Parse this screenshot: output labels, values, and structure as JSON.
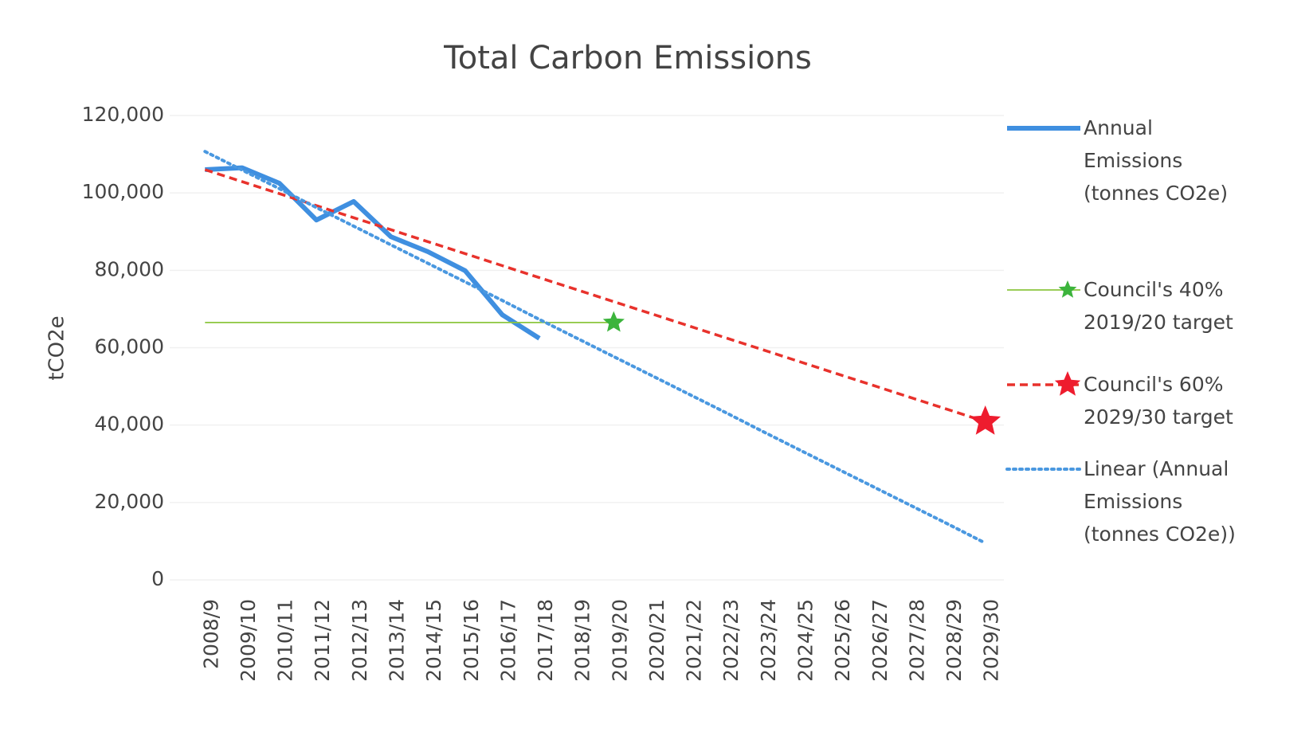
{
  "chart_data": {
    "type": "line",
    "title": "Total Carbon Emissions",
    "y_label": "tCO2e",
    "categories": [
      "2008/9",
      "2009/10",
      "2010/11",
      "2011/12",
      "2012/13",
      "2013/14",
      "2014/15",
      "2015/16",
      "2016/17",
      "2017/18",
      "2018/19",
      "2019/20",
      "2020/21",
      "2021/22",
      "2022/23",
      "2023/24",
      "2024/25",
      "2025/26",
      "2026/27",
      "2027/28",
      "2028/29",
      "2029/30"
    ],
    "ylim": [
      0,
      120000
    ],
    "yticks": [
      0,
      {
        "value": 20000,
        "label": "20,000"
      },
      {
        "value": 40000,
        "label": "40,000"
      },
      {
        "value": 60000,
        "label": "60,000"
      },
      {
        "value": 80000,
        "label": "80,000"
      },
      {
        "value": 100000,
        "label": "100,000"
      },
      {
        "value": 120000,
        "label": "120,000"
      }
    ],
    "grid": true,
    "legend": "right",
    "series": [
      {
        "name": "Annual Emissions (tonnes CO2e)",
        "color": "#3f8fe0",
        "style": "solid",
        "width": 6,
        "values": [
          106000,
          106500,
          102500,
          93000,
          97800,
          88700,
          84800,
          79900,
          68500,
          62400,
          null,
          null,
          null,
          null,
          null,
          null,
          null,
          null,
          null,
          null,
          null,
          null
        ]
      },
      {
        "name": "Council's 40% 2019/20 target",
        "color": "#8cc63f",
        "style": "solid",
        "width": 1.8,
        "marker": "star",
        "marker_color": "#3cb43c",
        "values": [
          66500,
          66500,
          66500,
          66500,
          66500,
          66500,
          66500,
          66500,
          66500,
          66500,
          66500,
          66500,
          null,
          null,
          null,
          null,
          null,
          null,
          null,
          null,
          null,
          null
        ]
      },
      {
        "name": "Council's 60% 2029/30 target",
        "color": "#e8322c",
        "style": "dashed",
        "width": 3.5,
        "marker": "star",
        "marker_color": "#ee1c2e",
        "values": [
          106000,
          102900,
          99800,
          96700,
          93600,
          90500,
          87400,
          84300,
          81200,
          78100,
          75000,
          71900,
          68800,
          65700,
          62600,
          59500,
          56400,
          53300,
          50200,
          47100,
          44000,
          40900
        ]
      },
      {
        "name": "Linear (Annual Emissions (tonnes CO2e))",
        "color": "#4a98e0",
        "style": "dotted",
        "width": 4,
        "values": [
          110700,
          105900,
          101100,
          96200,
          91400,
          86600,
          81800,
          77000,
          72200,
          67300,
          62500,
          57700,
          52900,
          48100,
          43300,
          38400,
          33600,
          28800,
          24000,
          19200,
          14400,
          9500
        ]
      }
    ]
  }
}
